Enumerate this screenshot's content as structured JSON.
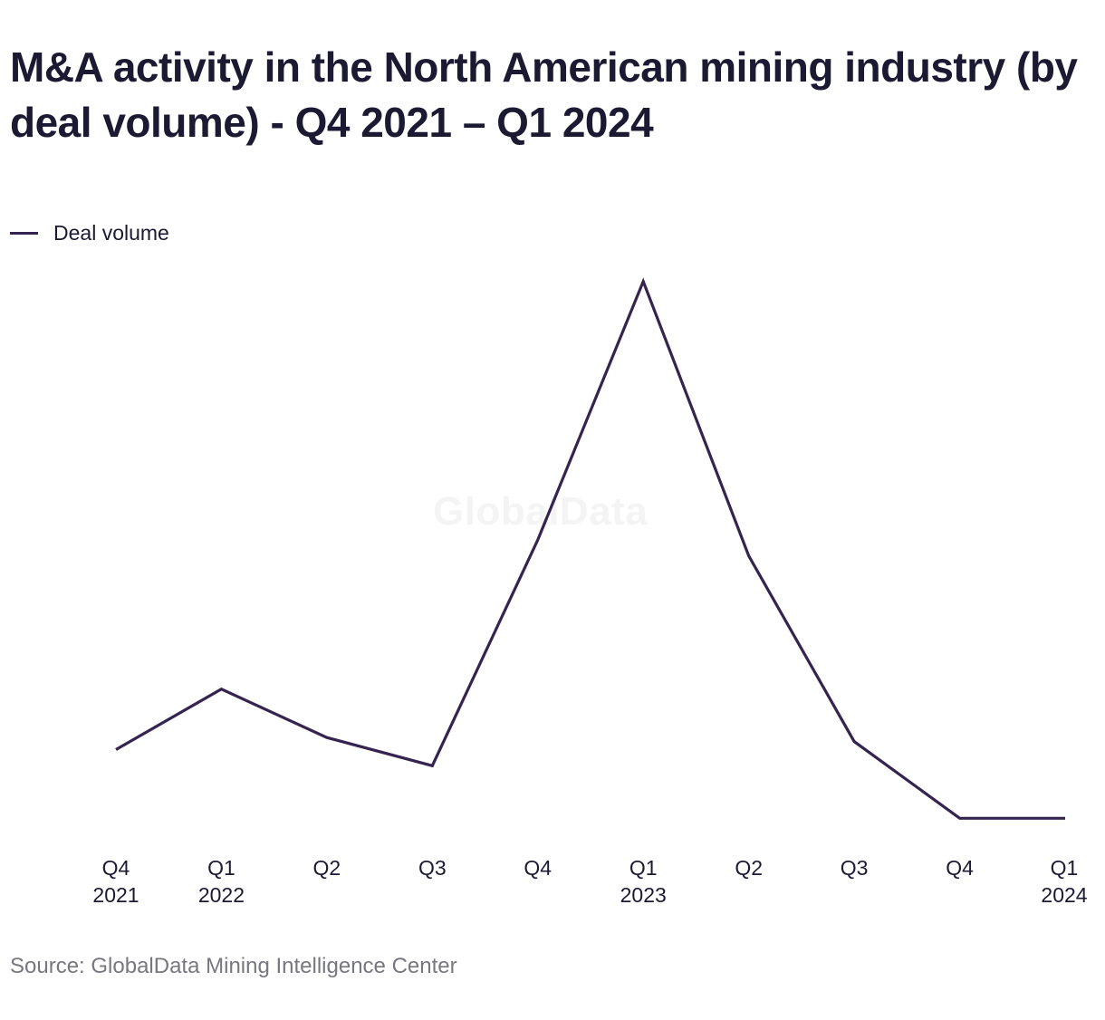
{
  "header": {
    "title": "M&A activity in the North American mining industry (by deal volume) - Q4 2021 – Q1 2024"
  },
  "legend": {
    "label": "Deal volume"
  },
  "watermark": {
    "text": "GlobalData"
  },
  "footer": {
    "source": "Source: GlobalData Mining Intelligence Center"
  },
  "colors": {
    "line": "#35244f",
    "text": "#1c1a33",
    "source": "#77777f"
  },
  "chart_data": {
    "type": "line",
    "title": "M&A activity in the North American mining industry (by deal volume) - Q4 2021 – Q1 2024",
    "xlabel": "",
    "ylabel": "",
    "grid": false,
    "legend_position": "top-left",
    "categories": [
      [
        "Q4",
        "2021"
      ],
      [
        "Q1",
        "2022"
      ],
      [
        "Q2",
        ""
      ],
      [
        "Q3",
        ""
      ],
      [
        "Q4",
        ""
      ],
      [
        "Q1",
        "2023"
      ],
      [
        "Q2",
        ""
      ],
      [
        "Q3",
        ""
      ],
      [
        "Q4",
        ""
      ],
      [
        "Q1",
        "2024"
      ]
    ],
    "series": [
      {
        "name": "Deal volume",
        "values": [
          8.8,
          10.3,
          9.1,
          8.4,
          14.0,
          20.4,
          13.6,
          9.0,
          7.1,
          7.1
        ]
      }
    ],
    "ylim": [
      4.3,
      22.1
    ]
  }
}
